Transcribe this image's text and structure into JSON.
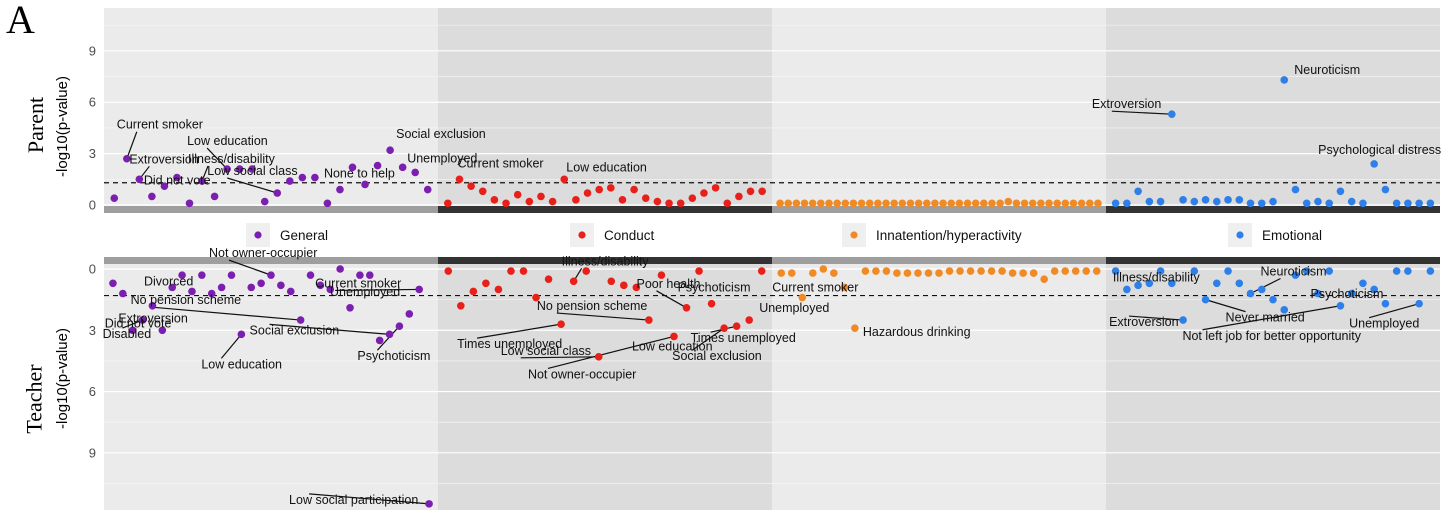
{
  "panel_label": "A",
  "rows": {
    "parent": {
      "title": "Parent",
      "ylabel": "-log10(p-value)"
    },
    "teacher": {
      "title": "Teacher",
      "ylabel": "-log10(p-value)"
    }
  },
  "chart_data": {
    "type": "scatter",
    "title": "",
    "groups": [
      {
        "name": "General",
        "color": "#7b1fb0"
      },
      {
        "name": "Conduct",
        "color": "#e8201a"
      },
      {
        "name": "Innatention/hyperactivity",
        "color": "#f08a24"
      },
      {
        "name": "Emotional",
        "color": "#2f7fe8"
      }
    ],
    "parent": {
      "ylabel": "-log10(p-value)",
      "yticks": [
        0,
        3,
        6,
        9
      ],
      "ylim": [
        0,
        11.5
      ],
      "threshold": 1.3,
      "series": [
        {
          "group": "General",
          "points": [
            0.4,
            2.7,
            1.5,
            0.5,
            1.1,
            1.6,
            0.1,
            1.4,
            0.5,
            2.1,
            2.1,
            2.1,
            0.2,
            0.7,
            1.4,
            1.6,
            1.6,
            0.1,
            0.9,
            2.2,
            1.2,
            2.3,
            3.2,
            2.2,
            1.9,
            0.9
          ]
        },
        {
          "group": "Conduct",
          "points": [
            0.1,
            1.5,
            1.1,
            0.8,
            0.3,
            0.1,
            0.6,
            0.2,
            0.5,
            0.2,
            1.5,
            0.3,
            0.7,
            0.9,
            1.0,
            0.3,
            0.9,
            0.4,
            0.2,
            0.1,
            0.1,
            0.4,
            0.7,
            1.0,
            0.1,
            0.5,
            0.8,
            0.8
          ]
        },
        {
          "group": "Innatention/hyperactivity",
          "points": [
            0.1,
            0.1,
            0.1,
            0.1,
            0.1,
            0.1,
            0.1,
            0.1,
            0.1,
            0.1,
            0.1,
            0.1,
            0.1,
            0.1,
            0.1,
            0.1,
            0.1,
            0.1,
            0.1,
            0.1,
            0.1,
            0.1,
            0.1,
            0.1,
            0.1,
            0.1,
            0.1,
            0.1,
            0.2,
            0.1,
            0.1,
            0.1,
            0.1,
            0.1,
            0.1,
            0.1,
            0.1,
            0.1,
            0.1,
            0.1
          ]
        },
        {
          "group": "Emotional",
          "points": [
            0.1,
            0.1,
            0.8,
            0.2,
            0.2,
            5.3,
            0.3,
            0.2,
            0.3,
            0.2,
            0.3,
            0.3,
            0.1,
            0.1,
            0.2,
            7.3,
            0.9,
            0.1,
            0.2,
            0.1,
            0.8,
            0.2,
            0.1,
            2.4,
            0.9,
            0.1,
            0.1,
            0.1,
            0.1
          ]
        }
      ],
      "annotations": [
        {
          "text": "Current smoker",
          "group": "General",
          "index": 1
        },
        {
          "text": "Extroversion",
          "group": "General",
          "index": 2
        },
        {
          "text": "Did not vote",
          "group": "General",
          "index": 3
        },
        {
          "text": "Illness/disability",
          "group": "General",
          "index": 7
        },
        {
          "text": "Low education",
          "group": "General",
          "index": 9
        },
        {
          "text": "Low social class",
          "group": "General",
          "index": 13
        },
        {
          "text": "None to help",
          "group": "General",
          "index": 18
        },
        {
          "text": "Social exclusion",
          "group": "General",
          "index": 22
        },
        {
          "text": "Unemployed",
          "group": "General",
          "index": 24
        },
        {
          "text": "Current smoker",
          "group": "Conduct",
          "index": 1
        },
        {
          "text": "Low education",
          "group": "Conduct",
          "index": 10
        },
        {
          "text": "Extroversion",
          "group": "Emotional",
          "index": 5
        },
        {
          "text": "Neuroticism",
          "group": "Emotional",
          "index": 15
        },
        {
          "text": "Psychological distress",
          "group": "Emotional",
          "index": 23
        }
      ]
    },
    "teacher": {
      "ylabel": "-log10(p-value)",
      "yticks": [
        0,
        3,
        6,
        9
      ],
      "ylim": [
        0,
        11.8
      ],
      "threshold": 1.3,
      "series": [
        {
          "group": "General",
          "points": [
            0.7,
            1.2,
            3.0,
            2.5,
            1.8,
            3.0,
            0.9,
            0.3,
            1.1,
            0.3,
            1.2,
            0.9,
            0.3,
            3.2,
            0.9,
            0.7,
            0.3,
            0.8,
            1.1,
            2.5,
            0.3,
            0.8,
            1.0,
            0.0,
            1.9,
            0.3,
            0.3,
            3.5,
            3.2,
            2.8,
            2.2,
            1.0,
            11.5
          ]
        },
        {
          "group": "Conduct",
          "points": [
            0.1,
            1.8,
            1.1,
            0.7,
            1.0,
            0.1,
            0.1,
            1.4,
            0.5,
            2.7,
            0.6,
            0.1,
            4.3,
            0.6,
            0.8,
            0.9,
            2.5,
            0.3,
            3.3,
            1.9,
            0.1,
            1.7,
            2.9,
            2.8,
            2.5,
            0.1
          ]
        },
        {
          "group": "Innatention/hyperactivity",
          "points": [
            0.2,
            0.2,
            1.4,
            0.2,
            0.0,
            0.2,
            0.9,
            2.9,
            0.1,
            0.1,
            0.1,
            0.2,
            0.2,
            0.2,
            0.2,
            0.2,
            0.1,
            0.1,
            0.1,
            0.1,
            0.1,
            0.1,
            0.2,
            0.2,
            0.2,
            0.5,
            0.1,
            0.1,
            0.1,
            0.1,
            0.1
          ]
        },
        {
          "group": "Emotional",
          "points": [
            0.1,
            1.0,
            0.8,
            0.7,
            0.1,
            0.7,
            2.5,
            0.1,
            1.5,
            0.7,
            0.1,
            0.7,
            1.2,
            1.0,
            1.5,
            2.0,
            0.3,
            0.1,
            1.2,
            0.1,
            1.8,
            1.2,
            0.7,
            1.0,
            1.7,
            0.1,
            0.1,
            1.7,
            0.1
          ]
        }
      ],
      "annotations": [
        {
          "text": "Disabled",
          "group": "General",
          "index": 3
        },
        {
          "text": "Did not vote",
          "group": "General",
          "index": 2
        },
        {
          "text": "Divorced",
          "group": "General",
          "index": 8
        },
        {
          "text": "Extroversion",
          "group": "General",
          "index": 5
        },
        {
          "text": "Low education",
          "group": "General",
          "index": 13
        },
        {
          "text": "Not owner-occupier",
          "group": "General",
          "index": 16
        },
        {
          "text": "No pension scheme",
          "group": "General",
          "index": 19
        },
        {
          "text": "Unemployed",
          "group": "General",
          "index": 24
        },
        {
          "text": "Current smoker",
          "group": "General",
          "index": 31
        },
        {
          "text": "Social exclusion",
          "group": "General",
          "index": 28
        },
        {
          "text": "Psychoticism",
          "group": "General",
          "index": 29
        },
        {
          "text": "Low social participation",
          "group": "General",
          "index": 32
        },
        {
          "text": "Illness/disability",
          "group": "Conduct",
          "index": 10
        },
        {
          "text": "No pension scheme",
          "group": "Conduct",
          "index": 16
        },
        {
          "text": "Times unemployed",
          "group": "Conduct",
          "index": 9
        },
        {
          "text": "Low social class",
          "group": "Conduct",
          "index": 12
        },
        {
          "text": "Not owner-occupier",
          "group": "Conduct",
          "index": 18
        },
        {
          "text": "Low education",
          "group": "Conduct",
          "index": 18
        },
        {
          "text": "Poor health",
          "group": "Conduct",
          "index": 19
        },
        {
          "text": "Psychoticism",
          "group": "Conduct",
          "index": 21
        },
        {
          "text": "Social exclusion",
          "group": "Conduct",
          "index": 22
        },
        {
          "text": "Unemployed",
          "group": "Conduct",
          "index": 24
        },
        {
          "text": "Times unemployed",
          "group": "Conduct",
          "index": 23
        },
        {
          "text": "Current smoker",
          "group": "Innatention/hyperactivity",
          "index": 2
        },
        {
          "text": "Hazardous drinking",
          "group": "Innatention/hyperactivity",
          "index": 7
        },
        {
          "text": "Illness/disability",
          "group": "Emotional",
          "index": 1
        },
        {
          "text": "Extroversion",
          "group": "Emotional",
          "index": 6
        },
        {
          "text": "Never married",
          "group": "Emotional",
          "index": 8
        },
        {
          "text": "Neuroticism",
          "group": "Emotional",
          "index": 12
        },
        {
          "text": "Psychoticism",
          "group": "Emotional",
          "index": 20
        },
        {
          "text": "Not left job for better opportunity",
          "group": "Emotional",
          "index": 20
        },
        {
          "text": "Unemployed",
          "group": "Emotional",
          "index": 27
        }
      ]
    },
    "grid": true,
    "legend_position": "middle"
  }
}
